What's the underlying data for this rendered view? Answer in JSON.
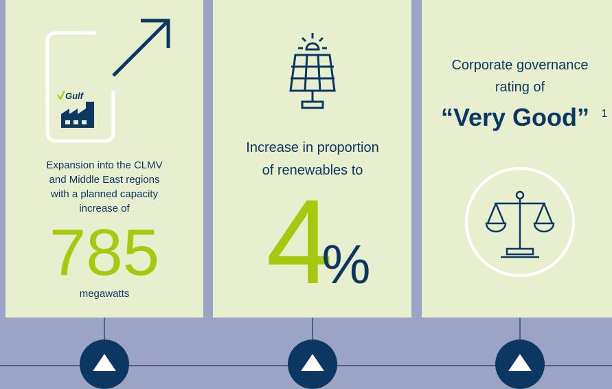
{
  "panels": [
    {
      "logo_text": "Gulf",
      "description_lines": [
        "Expansion into the CLMV",
        "and Middle East regions",
        "with a planned capacity",
        "increase of"
      ],
      "highlight": "785",
      "unit": "megawatts"
    },
    {
      "description_lines": [
        "Increase in proportion",
        "of renewables to"
      ],
      "highlight": "4",
      "unit": "%"
    },
    {
      "description_lines": [
        "Corporate governance",
        "rating of"
      ],
      "highlight": "“Very Good”",
      "footnote": "1"
    }
  ]
}
